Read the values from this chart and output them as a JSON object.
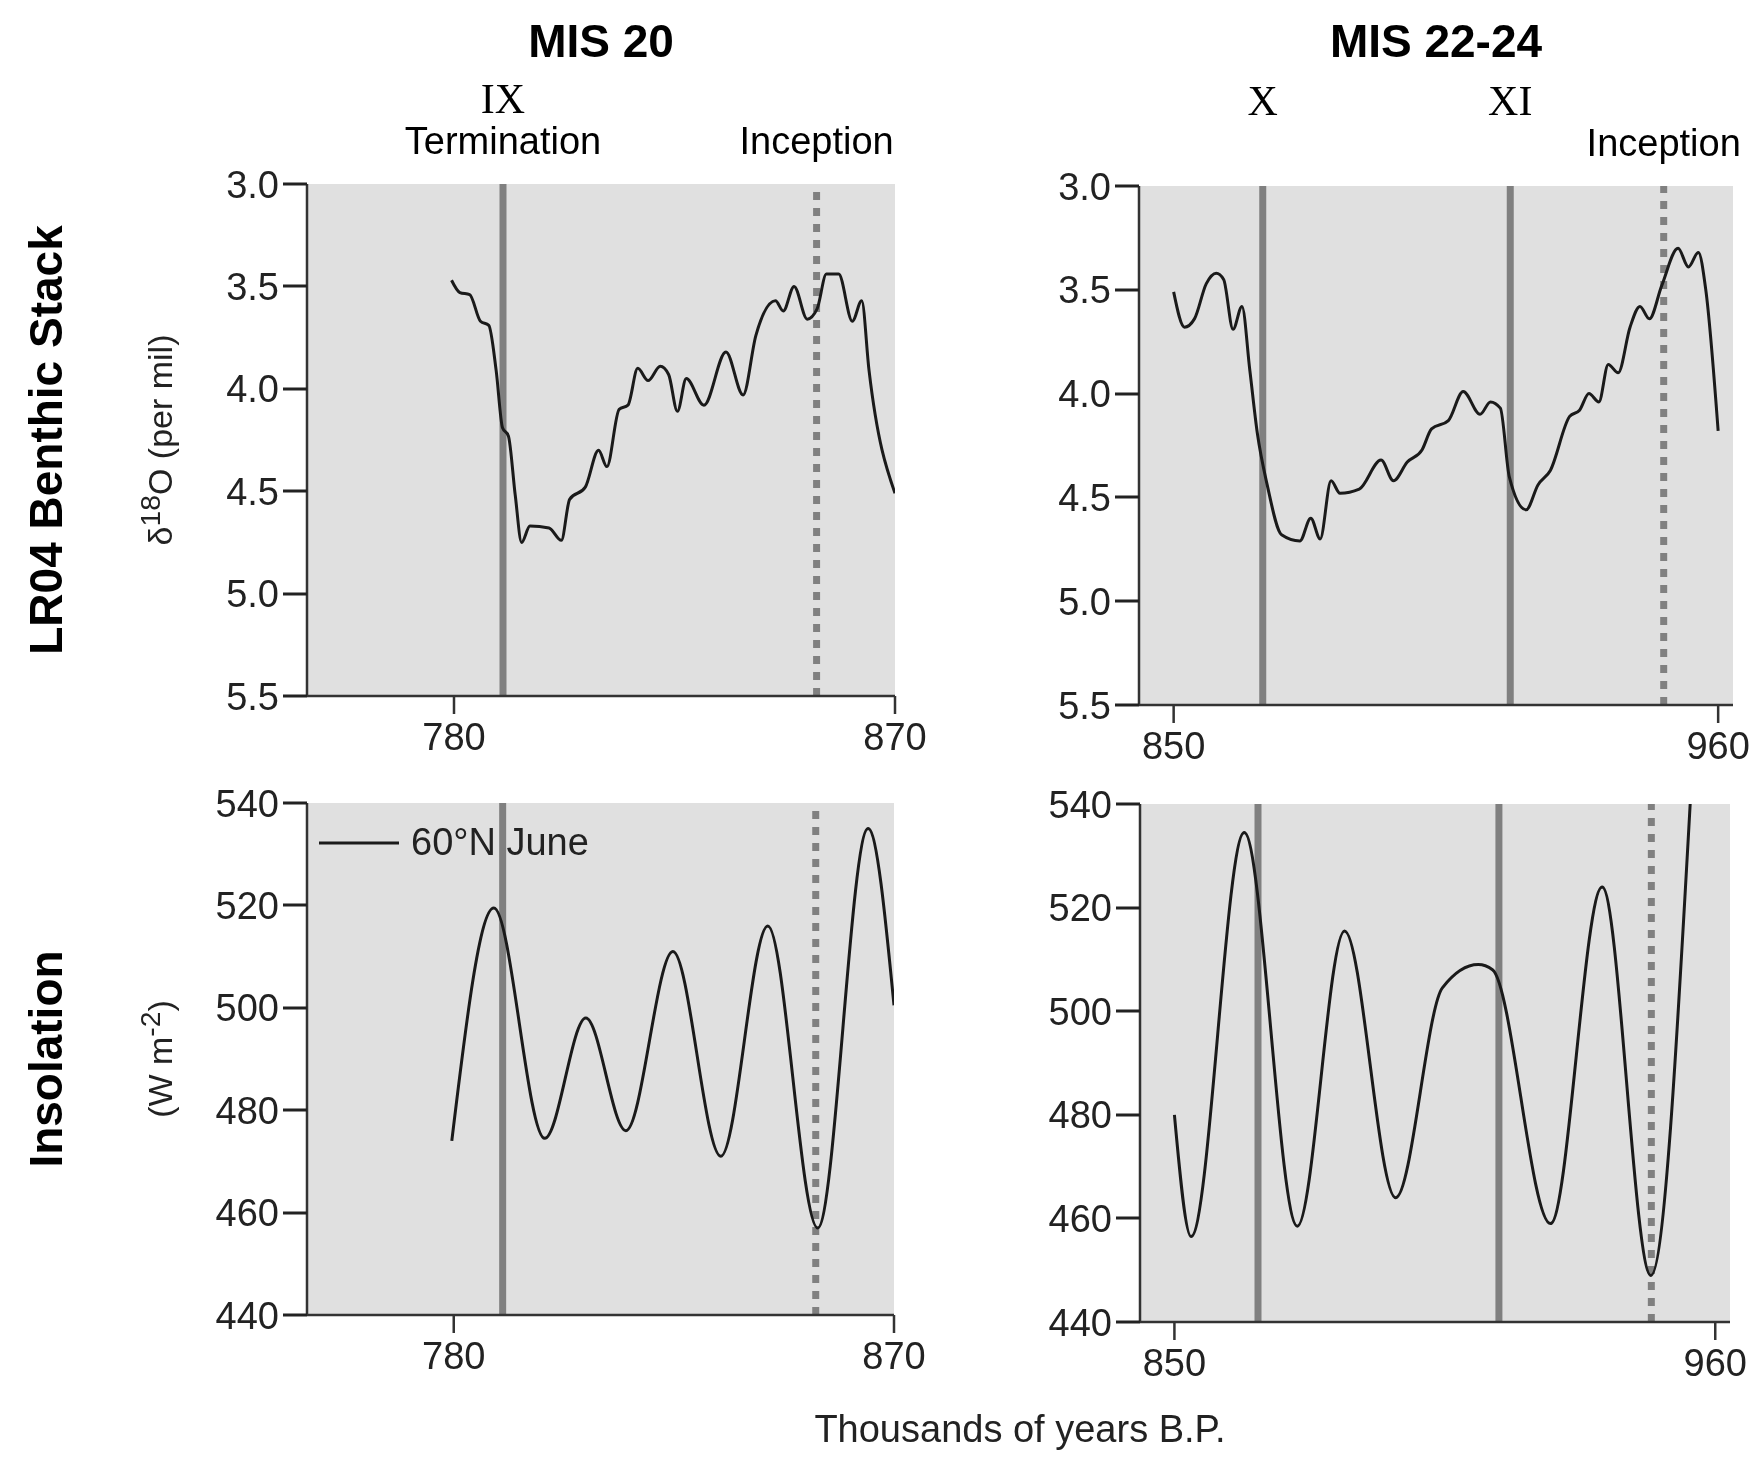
{
  "chart_data": [
    {
      "type": "line",
      "title": "MIS 20",
      "ylabel": "δ$^{18}$O (per mil)",
      "x": [
        779.5,
        781.2,
        783.2,
        785.4,
        787.1,
        788.6,
        789.9,
        791.1,
        792.5,
        793.8,
        795.5,
        799.4,
        801.9,
        803.6,
        806.8,
        809.5,
        811.2,
        813.7,
        815.5,
        817.5,
        819.6,
        822.1,
        823.8,
        825.6,
        827.4,
        831,
        835.5,
        839,
        841.6,
        845.6,
        847.2,
        849.4,
        852.1,
        854.1,
        856,
        858.5,
        861.3,
        863.2,
        864.7,
        870
      ],
      "series": [
        {
          "color": "#1a1a1a",
          "values": [
            3.47,
            3.53,
            3.54,
            3.67,
            3.69,
            3.91,
            4.19,
            4.23,
            4.52,
            4.75,
            4.67,
            4.68,
            4.74,
            4.54,
            4.48,
            4.3,
            4.38,
            4.1,
            4.08,
            3.9,
            3.96,
            3.89,
            3.93,
            4.11,
            3.95,
            4.08,
            3.82,
            4.03,
            3.74,
            3.57,
            3.62,
            3.5,
            3.66,
            3.61,
            3.44,
            3.44,
            3.67,
            3.57,
            3.91,
            4.51
          ]
        }
      ],
      "xlim": [
        750,
        870
      ],
      "xticks": [
        780,
        870
      ],
      "ylim": [
        5.5,
        3.0
      ],
      "yticks": [
        {
          "value": 3,
          "label": "3.0"
        },
        3.5,
        {
          "value": 4,
          "label": "4.0"
        },
        4.5,
        {
          "value": 5,
          "label": "5.0"
        },
        5.5
      ],
      "ref_lines": [
        {
          "axis": "x",
          "value": 790,
          "label": "IX",
          "color": "#808080",
          "line_style": "solid"
        },
        {
          "axis": "x",
          "value": 854,
          "color": "#808080",
          "line_style": "dotted"
        }
      ],
      "annotations": [
        "LR04 Benthic Stack",
        {
          "text": "Termination",
          "x": 790,
          "y": 3.0
        },
        {
          "text": "Inception",
          "x": 854,
          "y": 3.0
        }
      ],
      "grid": false,
      "marker": "none",
      "line_style": "solid"
    },
    {
      "type": "line",
      "title": "MIS 22-24",
      "x": [
        850,
        852.2,
        854.2,
        856.6,
        858.6,
        860.1,
        862,
        863.8,
        865.4,
        866.9,
        868.9,
        871.8,
        875.5,
        877.7,
        879.6,
        881.8,
        883.6,
        887.5,
        891.9,
        894.4,
        897.2,
        900.2,
        902.1,
        905.5,
        908.5,
        911.9,
        914,
        916,
        917.8,
        921.2,
        923.6,
        926.1,
        930,
        932,
        933.9,
        935.9,
        937.8,
        939.8,
        942.2,
        944.2,
        946.1,
        948.6,
        951.9,
        954,
        956,
        957.5,
        960
      ],
      "series": [
        {
          "color": "#1a1a1a",
          "values": [
            3.51,
            3.68,
            3.64,
            3.47,
            3.42,
            3.45,
            3.69,
            3.58,
            3.89,
            4.19,
            4.44,
            4.68,
            4.71,
            4.6,
            4.7,
            4.42,
            4.48,
            4.46,
            4.32,
            4.42,
            4.33,
            4.27,
            4.17,
            4.13,
            3.99,
            4.1,
            4.04,
            4.07,
            4.4,
            4.56,
            4.44,
            4.37,
            4.11,
            4.08,
            4.0,
            4.04,
            3.86,
            3.9,
            3.68,
            3.58,
            3.64,
            3.48,
            3.3,
            3.39,
            3.32,
            3.5,
            4.18
          ]
        }
      ],
      "xlim": [
        843,
        963
      ],
      "xticks": [
        850,
        960
      ],
      "ylim": [
        5.5,
        3.0
      ],
      "yticks": [
        {
          "value": 3,
          "label": "3.0"
        },
        3.5,
        {
          "value": 4,
          "label": "4.0"
        },
        4.5,
        {
          "value": 5,
          "label": "5.0"
        },
        5.5
      ],
      "ref_lines": [
        {
          "axis": "x",
          "value": 868,
          "label": "X",
          "color": "#808080",
          "line_style": "solid"
        },
        {
          "axis": "x",
          "value": 918,
          "label": "XI",
          "color": "#808080",
          "line_style": "solid"
        },
        {
          "axis": "x",
          "value": 949,
          "color": "#808080",
          "line_style": "dotted"
        }
      ],
      "annotations": [
        {
          "text": "Inception",
          "x": 949,
          "y": 3.0
        }
      ],
      "grid": false,
      "marker": "none",
      "line_style": "solid"
    },
    {
      "type": "line",
      "xlabel": "Thousands of years B.P.",
      "ylabel": "(W m$^{-2}$)",
      "x": [
        779.6,
        788.2,
        798.6,
        807,
        815.2,
        824.8,
        834.6,
        844.2,
        854.4,
        864.7,
        870
      ],
      "series": [
        {
          "name": "60°N June",
          "color": "#1a1a1a",
          "values": [
            474,
            519.5,
            474.5,
            498,
            476,
            511,
            471,
            516,
            457,
            535,
            500.5
          ]
        }
      ],
      "xlim": [
        750,
        870
      ],
      "xticks": [
        780,
        870
      ],
      "ylim": [
        440,
        540
      ],
      "yticks": [
        440,
        460,
        480,
        500,
        520,
        540
      ],
      "ref_lines": [
        {
          "axis": "x",
          "value": 790,
          "color": "#808080",
          "line_style": "solid"
        },
        {
          "axis": "x",
          "value": 854,
          "color": "#808080",
          "line_style": "dotted"
        }
      ],
      "annotations": [
        "Insolation"
      ],
      "legend": "top left",
      "grid": false,
      "marker": "none",
      "line_style": "solid"
    },
    {
      "type": "line",
      "x": [
        850,
        853.4,
        864.2,
        875,
        884.6,
        895,
        904.5,
        911.8,
        914.7,
        926.5,
        937,
        946.9,
        954.9
      ],
      "series": [
        {
          "color": "#1a1a1a",
          "values": [
            480,
            456.5,
            534.5,
            458.5,
            515.5,
            464,
            504.5,
            509,
            508,
            459,
            524,
            449,
            540
          ]
        }
      ],
      "xlim": [
        843,
        963
      ],
      "xticks": [
        850,
        960
      ],
      "ylim": [
        440,
        540
      ],
      "yticks": [
        440,
        460,
        480,
        500,
        520,
        540
      ],
      "ref_lines": [
        {
          "axis": "x",
          "value": 867,
          "color": "#808080",
          "line_style": "solid"
        },
        {
          "axis": "x",
          "value": 916,
          "color": "#808080",
          "line_style": "solid"
        },
        {
          "axis": "x",
          "value": 947,
          "color": "#808080",
          "line_style": "dotted"
        }
      ],
      "grid": false,
      "marker": "none",
      "line_style": "solid"
    }
  ]
}
